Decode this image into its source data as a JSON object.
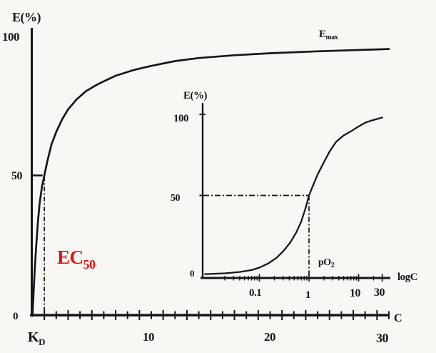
{
  "colors": {
    "background": "#f8f7f3",
    "ink": "#161616",
    "accent_red": "#e21210"
  },
  "chart_data": [
    {
      "type": "line",
      "name": "main-dose-response-hyperbola",
      "title": "",
      "xlabel": "C",
      "ylabel": "E(%)",
      "xlim": [
        0,
        30
      ],
      "ylim": [
        0,
        100
      ],
      "x_scale": "linear",
      "x_minor_tick_step": 1,
      "x_ticks": [
        {
          "value": 10,
          "label": "10"
        },
        {
          "value": 20,
          "label": "20"
        },
        {
          "value": 30,
          "label": "30"
        }
      ],
      "y_ticks": [
        {
          "value": 0,
          "label": "0"
        },
        {
          "value": 50,
          "label": "50"
        },
        {
          "value": 100,
          "label": "100"
        }
      ],
      "annotations": {
        "emax": {
          "base": "E",
          "sub": "max"
        },
        "ec50": {
          "base": "EC",
          "sub": "50"
        },
        "kd": {
          "base": "K",
          "sub": "D"
        }
      },
      "reference": {
        "half_effect": {
          "x": 1,
          "y": 50
        }
      },
      "series": [
        {
          "name": "hyperbolic dose-response curve",
          "points": [
            [
              0,
              0
            ],
            [
              0.1,
              9
            ],
            [
              0.2,
              17
            ],
            [
              0.3,
              24
            ],
            [
              0.45,
              33
            ],
            [
              0.6,
              40
            ],
            [
              0.8,
              46
            ],
            [
              1,
              50
            ],
            [
              1.25,
              55
            ],
            [
              1.6,
              61
            ],
            [
              2,
              65.5
            ],
            [
              2.5,
              70
            ],
            [
              3,
              73.5
            ],
            [
              3.7,
              77
            ],
            [
              4.5,
              80
            ],
            [
              5.5,
              82.5
            ],
            [
              7,
              85.5
            ],
            [
              8.5,
              87.5
            ],
            [
              10,
              89
            ],
            [
              12,
              90.7
            ],
            [
              14,
              91.8
            ],
            [
              17,
              92.8
            ],
            [
              20,
              93.5
            ],
            [
              24,
              94.2
            ],
            [
              27,
              94.6
            ],
            [
              30,
              95
            ]
          ]
        }
      ],
      "legend": "none",
      "grid": false
    },
    {
      "type": "line",
      "name": "inset-semilog-sigmoid",
      "title": "",
      "xlabel": "logC",
      "ylabel": "E(%)",
      "xlim": [
        0.008,
        30
      ],
      "ylim": [
        0,
        100
      ],
      "x_scale": "log",
      "x_ticks": [
        {
          "value": 0.1,
          "label": "0.1"
        },
        {
          "value": 1,
          "label": "1"
        },
        {
          "value": 10,
          "label": "10"
        },
        {
          "value": 30,
          "label": "30"
        }
      ],
      "y_ticks": [
        {
          "value": 0,
          "label": "0"
        },
        {
          "value": 50,
          "label": "50"
        },
        {
          "value": 100,
          "label": "100"
        }
      ],
      "annotations": {
        "po2": {
          "base": "pO",
          "sub": "2"
        }
      },
      "reference": {
        "half_effect": {
          "x": 1,
          "y": 50
        }
      },
      "series": [
        {
          "name": "sigmoid dose-response curve (semilog)",
          "points": [
            [
              0.008,
              1.5
            ],
            [
              0.02,
              2
            ],
            [
              0.04,
              2.8
            ],
            [
              0.07,
              4
            ],
            [
              0.1,
              5.5
            ],
            [
              0.15,
              8
            ],
            [
              0.22,
              11.5
            ],
            [
              0.3,
              15.5
            ],
            [
              0.42,
              21
            ],
            [
              0.55,
              27
            ],
            [
              0.7,
              34
            ],
            [
              0.85,
              42
            ],
            [
              1,
              50
            ],
            [
              1.2,
              56
            ],
            [
              1.5,
              63
            ],
            [
              2,
              70.5
            ],
            [
              2.6,
              77
            ],
            [
              3.5,
              83
            ],
            [
              5,
              87
            ],
            [
              7,
              89.5
            ],
            [
              10,
              92.5
            ],
            [
              14,
              95
            ],
            [
              20,
              96.5
            ],
            [
              30,
              98
            ]
          ]
        }
      ],
      "legend": "none",
      "grid": false
    }
  ]
}
